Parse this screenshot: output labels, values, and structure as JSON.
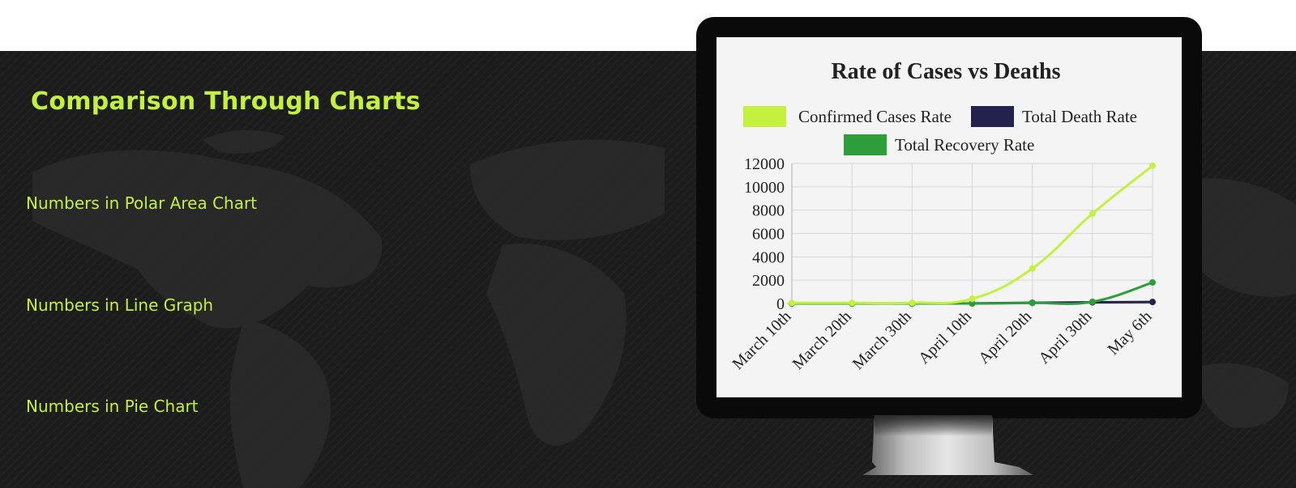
{
  "section": {
    "title": "Comparison Through Charts"
  },
  "nav": [
    {
      "label": "Numbers in Polar Area Chart"
    },
    {
      "label": "Numbers in Line Graph"
    },
    {
      "label": "Numbers in Pie Chart"
    }
  ],
  "colors": {
    "accent": "#c4f03e",
    "background": "#1c1c1c"
  },
  "chart_data": {
    "type": "line",
    "title": "Rate of Cases vs Deaths",
    "x": [
      "March 10th",
      "March 20th",
      "March 30th",
      "April 10th",
      "April 20th",
      "April 30th",
      "May 6th"
    ],
    "series": [
      {
        "name": "Confirmed Cases Rate",
        "color": "#c4f03e",
        "values": [
          50,
          50,
          60,
          400,
          3000,
          7700,
          11800
        ]
      },
      {
        "name": "Total Death Rate",
        "color": "#22224c",
        "values": [
          0,
          0,
          0,
          10,
          60,
          100,
          130
        ]
      },
      {
        "name": "Total Recovery Rate",
        "color": "#2e9e3a",
        "values": [
          0,
          0,
          0,
          0,
          50,
          150,
          1800
        ]
      }
    ],
    "ylim": [
      0,
      12000
    ],
    "yticks": [
      0,
      2000,
      4000,
      6000,
      8000,
      10000,
      12000
    ],
    "grid": true,
    "legend": "top"
  }
}
